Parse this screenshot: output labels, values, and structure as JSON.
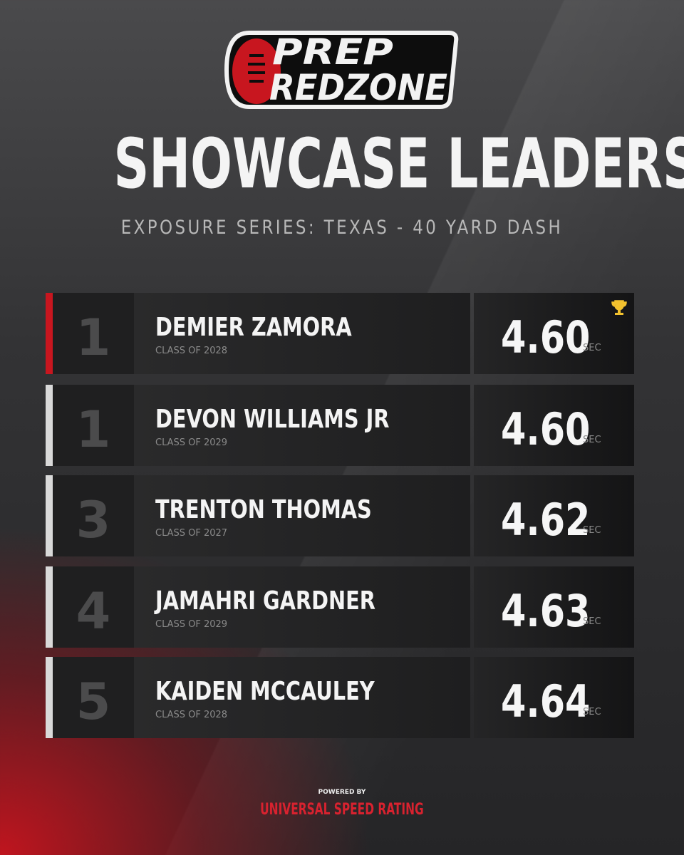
{
  "logo": {
    "top": "PREP",
    "bottom": "REDZONE"
  },
  "title": "SHOWCASE LEADERS",
  "subtitle": "EXPOSURE SERIES: TEXAS - 40 YARD DASH",
  "time_unit": "SEC",
  "rows": [
    {
      "rank": "1",
      "name": "DEMIER ZAMORA",
      "class": "CLASS OF 2028",
      "time": "4.60"
    },
    {
      "rank": "1",
      "name": "DEVON WILLIAMS JR",
      "class": "CLASS OF 2029",
      "time": "4.60"
    },
    {
      "rank": "3",
      "name": "TRENTON THOMAS",
      "class": "CLASS OF 2027",
      "time": "4.62"
    },
    {
      "rank": "4",
      "name": "JAMAHRI GARDNER",
      "class": "CLASS OF 2029",
      "time": "4.63"
    },
    {
      "rank": "5",
      "name": "KAIDEN MCCAULEY",
      "class": "CLASS OF 2028",
      "time": "4.64"
    }
  ],
  "footer": {
    "powered_by": "POWERED BY",
    "brand": "UNIVERSAL SPEED RATING"
  }
}
